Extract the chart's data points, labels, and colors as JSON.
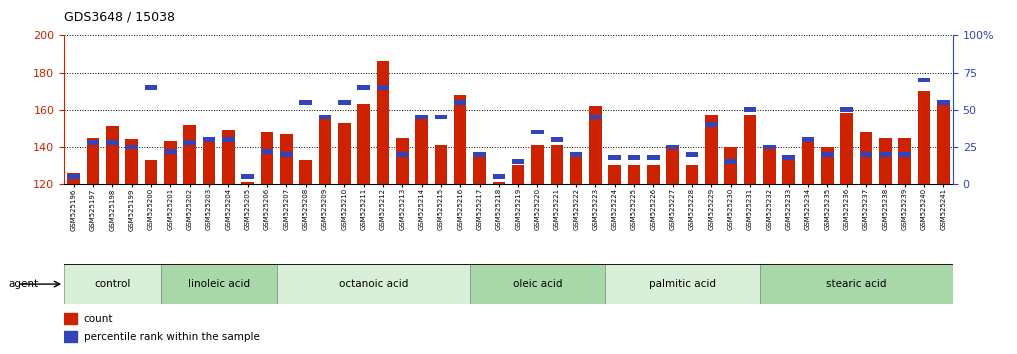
{
  "title": "GDS3648 / 15038",
  "samples": [
    "GSM525196",
    "GSM525197",
    "GSM525198",
    "GSM525199",
    "GSM525200",
    "GSM525201",
    "GSM525202",
    "GSM525203",
    "GSM525204",
    "GSM525205",
    "GSM525206",
    "GSM525207",
    "GSM525208",
    "GSM525209",
    "GSM525210",
    "GSM525211",
    "GSM525212",
    "GSM525213",
    "GSM525214",
    "GSM525215",
    "GSM525216",
    "GSM525217",
    "GSM525218",
    "GSM525219",
    "GSM525220",
    "GSM525221",
    "GSM525222",
    "GSM525223",
    "GSM525224",
    "GSM525225",
    "GSM525226",
    "GSM525227",
    "GSM525228",
    "GSM525229",
    "GSM525230",
    "GSM525231",
    "GSM525232",
    "GSM525233",
    "GSM525234",
    "GSM525235",
    "GSM525236",
    "GSM525237",
    "GSM525238",
    "GSM525239",
    "GSM525240",
    "GSM525241"
  ],
  "count_values": [
    126,
    145,
    151,
    144,
    133,
    143,
    152,
    144,
    149,
    121,
    148,
    147,
    133,
    156,
    153,
    163,
    186,
    145,
    157,
    141,
    168,
    137,
    121,
    130,
    141,
    141,
    135,
    162,
    130,
    130,
    130,
    140,
    130,
    157,
    140,
    157,
    141,
    133,
    145,
    140,
    158,
    148,
    145,
    145,
    170,
    163
  ],
  "percentile_values": [
    5,
    28,
    28,
    25,
    65,
    22,
    28,
    30,
    30,
    5,
    22,
    20,
    55,
    45,
    55,
    65,
    65,
    20,
    45,
    45,
    55,
    20,
    5,
    15,
    35,
    30,
    20,
    45,
    18,
    18,
    18,
    25,
    20,
    40,
    15,
    50,
    25,
    18,
    30,
    20,
    50,
    20,
    20,
    20,
    70,
    55
  ],
  "groups": [
    {
      "label": "control",
      "start": 0,
      "end": 5
    },
    {
      "label": "linoleic acid",
      "start": 5,
      "end": 11
    },
    {
      "label": "octanoic acid",
      "start": 11,
      "end": 21
    },
    {
      "label": "oleic acid",
      "start": 21,
      "end": 28
    },
    {
      "label": "palmitic acid",
      "start": 28,
      "end": 36
    },
    {
      "label": "stearic acid",
      "start": 36,
      "end": 46
    }
  ],
  "group_alt_colors": [
    "#d8f0d8",
    "#a8d8a8"
  ],
  "bar_color_red": "#cc2200",
  "bar_color_blue": "#3344bb",
  "left_ylim": [
    120,
    200
  ],
  "right_ylim": [
    0,
    100
  ],
  "left_yticks": [
    120,
    140,
    160,
    180,
    200
  ],
  "right_yticks": [
    0,
    25,
    50,
    75,
    100
  ],
  "right_yticklabels": [
    "0",
    "25",
    "50",
    "75",
    "100%"
  ],
  "legend_count": "count",
  "legend_percentile": "percentile rank within the sample",
  "title_color": "#000000",
  "left_axis_color": "#cc2200",
  "right_axis_color": "#3344bb",
  "bg_color": "#ffffff",
  "bar_width": 0.65
}
